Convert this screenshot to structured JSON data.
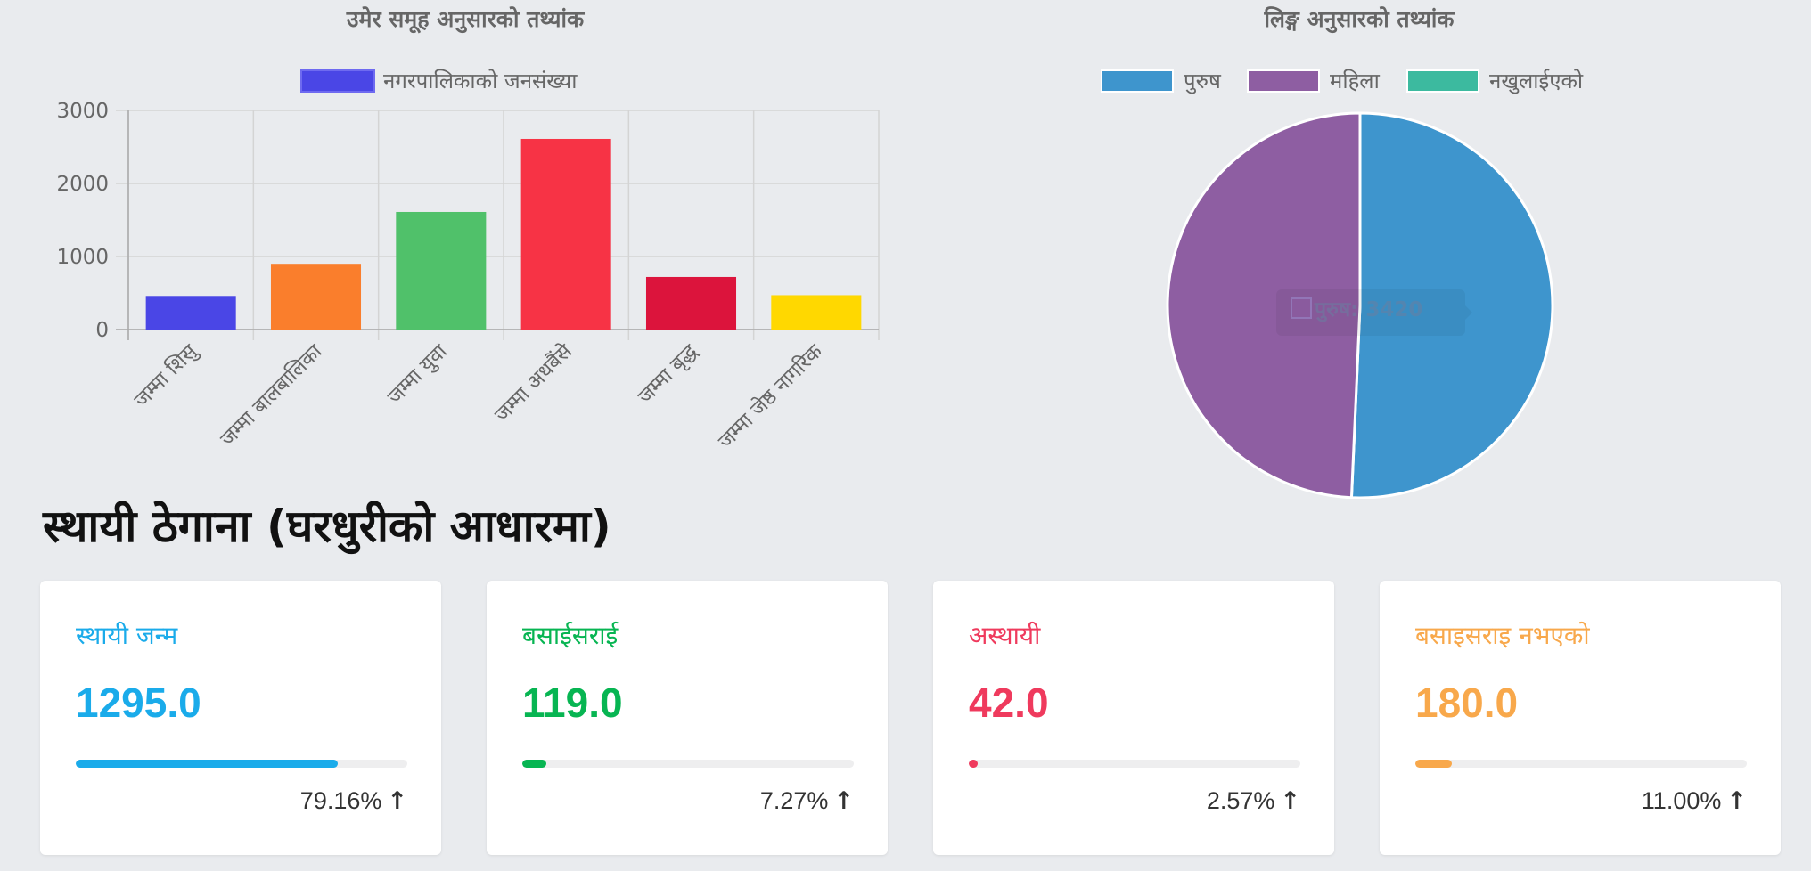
{
  "colors": {
    "stroke_grid": "#d4d4d4",
    "axis_text": "#666666"
  },
  "bar_chart": {
    "title": "उमेर समूह अनुसारको तथ्यांक",
    "legend_label": "नगरपालिकाको जनसंख्या",
    "legend_color": "#4a46e6"
  },
  "pie_chart": {
    "title": "लिङ्ग अनुसारको तथ्यांक",
    "tooltip": "पुरुष: 3420"
  },
  "chart_data": [
    {
      "type": "bar",
      "title": "उमेर समूह अनुसारको तथ्यांक",
      "categories": [
        "जम्मा शिसु",
        "जम्मा बालबालिका",
        "जम्मा युवा",
        "जम्मा अधबैंसे",
        "जम्मा बृद्ध",
        "जम्मा जेष्ठ नागरिक"
      ],
      "series": [
        {
          "name": "नगरपालिकाको जनसंख्या",
          "values": [
            460,
            900,
            1610,
            2610,
            720,
            470
          ],
          "colors": [
            "#4a46e6",
            "#fa7e2c",
            "#50c16a",
            "#f73345",
            "#dc143c",
            "#ffd800"
          ]
        }
      ],
      "ylim": [
        0,
        3000
      ],
      "yticks": [
        0,
        1000,
        2000,
        3000
      ],
      "grid": true,
      "legend": "top-center"
    },
    {
      "type": "pie",
      "title": "लिङ्ग अनुसारको तथ्यांक",
      "labels": [
        "पुरुष",
        "महिला",
        "नखुलाईएको"
      ],
      "values": [
        3420,
        3325,
        0
      ],
      "colors": [
        "#3e95cd",
        "#8e5ea2",
        "#3cba9f"
      ],
      "legend": "top-center"
    }
  ],
  "section": {
    "heading": "स्थायी ठेगाना (घरधुरीको आधारमा)"
  },
  "cards": [
    {
      "label": "स्थायी जन्म",
      "value": "1295.0",
      "percent": "79.16%",
      "fraction": 0.7916,
      "color": "#1aabea",
      "arrow_icon": "arrow-up-icon"
    },
    {
      "label": "बसाईसराई",
      "value": "119.0",
      "percent": "7.27%",
      "fraction": 0.0727,
      "color": "#07b552",
      "arrow_icon": "arrow-up-icon"
    },
    {
      "label": "अस्थायी",
      "value": "42.0",
      "percent": "2.57%",
      "fraction": 0.0257,
      "color": "#ef3a5d",
      "arrow_icon": "arrow-up-icon"
    },
    {
      "label": "बसाइसराइ नभएको",
      "value": "180.0",
      "percent": "11.00%",
      "fraction": 0.11,
      "color": "#f8a84b",
      "arrow_icon": "arrow-up-icon"
    }
  ]
}
